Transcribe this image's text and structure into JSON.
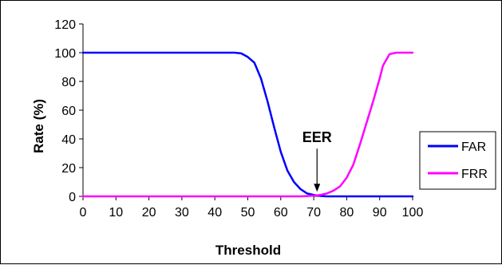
{
  "chart_data": {
    "type": "line",
    "title": "",
    "xlabel": "Threshold",
    "ylabel": "Rate (%)",
    "xlim": [
      0,
      100
    ],
    "ylim": [
      0,
      120
    ],
    "x_ticks": [
      0,
      10,
      20,
      30,
      40,
      50,
      60,
      70,
      80,
      90,
      100
    ],
    "y_ticks": [
      0,
      20,
      40,
      60,
      80,
      100,
      120
    ],
    "grid": false,
    "legend_position": "right",
    "series": [
      {
        "name": "FAR",
        "color": "#0000ff",
        "points": [
          [
            0,
            100
          ],
          [
            10,
            100
          ],
          [
            20,
            100
          ],
          [
            30,
            100
          ],
          [
            40,
            100
          ],
          [
            46,
            100
          ],
          [
            48,
            99.5
          ],
          [
            50,
            97
          ],
          [
            52,
            93
          ],
          [
            54,
            82
          ],
          [
            56,
            66
          ],
          [
            58,
            48
          ],
          [
            60,
            31
          ],
          [
            62,
            18
          ],
          [
            64,
            10
          ],
          [
            66,
            5
          ],
          [
            68,
            2
          ],
          [
            70,
            1
          ],
          [
            72,
            0.3
          ],
          [
            74,
            0
          ],
          [
            80,
            0
          ],
          [
            90,
            0
          ],
          [
            100,
            0
          ]
        ]
      },
      {
        "name": "FRR",
        "color": "#ff00ff",
        "points": [
          [
            0,
            0
          ],
          [
            10,
            0
          ],
          [
            20,
            0
          ],
          [
            30,
            0
          ],
          [
            40,
            0
          ],
          [
            50,
            0
          ],
          [
            60,
            0
          ],
          [
            66,
            0
          ],
          [
            68,
            0.2
          ],
          [
            70,
            0.5
          ],
          [
            72,
            1
          ],
          [
            74,
            2
          ],
          [
            76,
            4
          ],
          [
            78,
            7
          ],
          [
            80,
            13
          ],
          [
            82,
            22
          ],
          [
            84,
            36
          ],
          [
            86,
            51
          ],
          [
            88,
            66
          ],
          [
            90,
            82
          ],
          [
            91,
            91
          ],
          [
            93,
            99
          ],
          [
            95,
            100
          ],
          [
            100,
            100
          ]
        ]
      }
    ],
    "annotations": [
      {
        "text": "EER",
        "x": 71,
        "y": 1
      }
    ]
  }
}
